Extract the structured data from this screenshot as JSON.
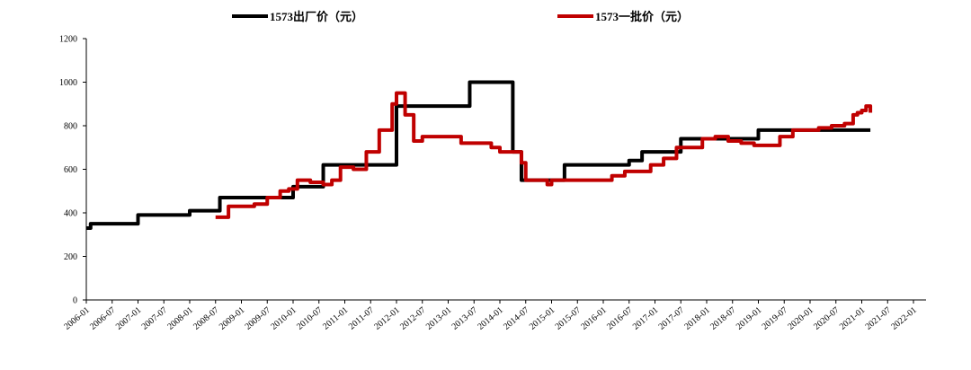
{
  "chart_data": {
    "type": "line",
    "xticks": [
      "2006-01",
      "2006-07",
      "2007-01",
      "2007-07",
      "2008-01",
      "2008-07",
      "2009-01",
      "2009-07",
      "2010-01",
      "2010-07",
      "2011-01",
      "2011-07",
      "2012-01",
      "2012-07",
      "2013-01",
      "2013-07",
      "2014-01",
      "2014-07",
      "2015-01",
      "2015-07",
      "2016-01",
      "2016-07",
      "2017-01",
      "2017-07",
      "2018-01",
      "2018-07",
      "2019-01",
      "2019-07",
      "2020-01",
      "2020-07",
      "2021-01",
      "2021-07",
      "2022-01"
    ],
    "ylim": [
      0,
      1200
    ],
    "yticks": [
      0,
      200,
      400,
      600,
      800,
      1000,
      1200
    ],
    "step": true,
    "series": [
      {
        "name": "1573出厂价（元）",
        "color": "#000000",
        "x": [
          "2006-01",
          "2006-02",
          "2007-01",
          "2008-01",
          "2008-08",
          "2010-01",
          "2010-08",
          "2012-01",
          "2013-06",
          "2014-04",
          "2014-06",
          "2015-04",
          "2016-07",
          "2016-10",
          "2017-07",
          "2019-01",
          "2021-03"
        ],
        "values": [
          330,
          350,
          390,
          410,
          470,
          520,
          620,
          890,
          1000,
          680,
          550,
          620,
          640,
          680,
          740,
          780,
          780
        ]
      },
      {
        "name": "1573一批价（元）",
        "color": "#c00000",
        "x": [
          "2008-07",
          "2008-09",
          "2008-10",
          "2009-01",
          "2009-04",
          "2009-07",
          "2009-10",
          "2009-12",
          "2010-02",
          "2010-05",
          "2010-08",
          "2010-10",
          "2010-12",
          "2011-03",
          "2011-06",
          "2011-09",
          "2011-12",
          "2012-01",
          "2012-03",
          "2012-05",
          "2012-07",
          "2013-03",
          "2013-04",
          "2013-10",
          "2013-11",
          "2014-01",
          "2014-05",
          "2014-06",
          "2014-07",
          "2014-10",
          "2014-12",
          "2015-01",
          "2016-01",
          "2016-03",
          "2016-06",
          "2016-09",
          "2016-12",
          "2017-03",
          "2017-06",
          "2017-09",
          "2017-12",
          "2018-03",
          "2018-06",
          "2018-09",
          "2018-12",
          "2019-03",
          "2019-06",
          "2019-09",
          "2019-12",
          "2020-03",
          "2020-06",
          "2020-09",
          "2020-11",
          "2020-12",
          "2021-01",
          "2021-02",
          "2021-03"
        ],
        "values": [
          380,
          380,
          430,
          430,
          440,
          470,
          500,
          510,
          550,
          540,
          530,
          550,
          610,
          600,
          680,
          780,
          900,
          950,
          850,
          730,
          750,
          750,
          720,
          720,
          700,
          680,
          680,
          630,
          550,
          550,
          530,
          550,
          550,
          570,
          590,
          590,
          620,
          650,
          700,
          700,
          740,
          750,
          730,
          720,
          710,
          710,
          750,
          780,
          780,
          790,
          800,
          810,
          850,
          860,
          870,
          890,
          860
        ]
      }
    ]
  }
}
